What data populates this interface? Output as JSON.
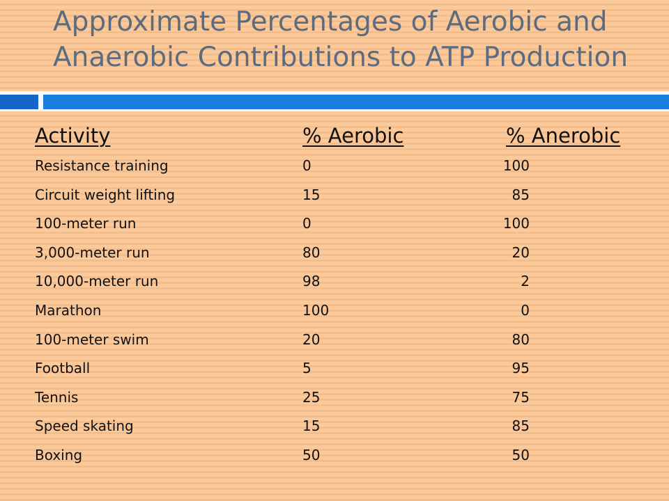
{
  "slide": {
    "title_line1": "Approximate Percentages of Aerobic and",
    "title_line2": "Anaerobic Contributions to ATP Production"
  },
  "table": {
    "headers": [
      "Activity",
      "% Aerobic",
      "% Anerobic"
    ],
    "rows": [
      {
        "activity": "Resistance training",
        "aerobic": "0",
        "anaerobic": "100"
      },
      {
        "activity": "Circuit weight lifting",
        "aerobic": "15",
        "anaerobic": "85"
      },
      {
        "activity": "100-meter run",
        "aerobic": "0",
        "anaerobic": "100"
      },
      {
        "activity": "3,000-meter run",
        "aerobic": "80",
        "anaerobic": "20"
      },
      {
        "activity": "10,000-meter run",
        "aerobic": "98",
        "anaerobic": "2"
      },
      {
        "activity": "Marathon",
        "aerobic": "100",
        "anaerobic": "0"
      },
      {
        "activity": "100-meter swim",
        "aerobic": "20",
        "anaerobic": "80"
      },
      {
        "activity": "Football",
        "aerobic": "5",
        "anaerobic": "95"
      },
      {
        "activity": "Tennis",
        "aerobic": "25",
        "anaerobic": "75"
      },
      {
        "activity": "Speed skating",
        "aerobic": "15",
        "anaerobic": "85"
      },
      {
        "activity": "Boxing",
        "aerobic": "50",
        "anaerobic": "50"
      }
    ]
  },
  "colors": {
    "background": "#fbc99a",
    "title_text": "#5d6b7e",
    "accent_dark_blue": "#1565c9",
    "accent_blue": "#1a7ee0"
  }
}
